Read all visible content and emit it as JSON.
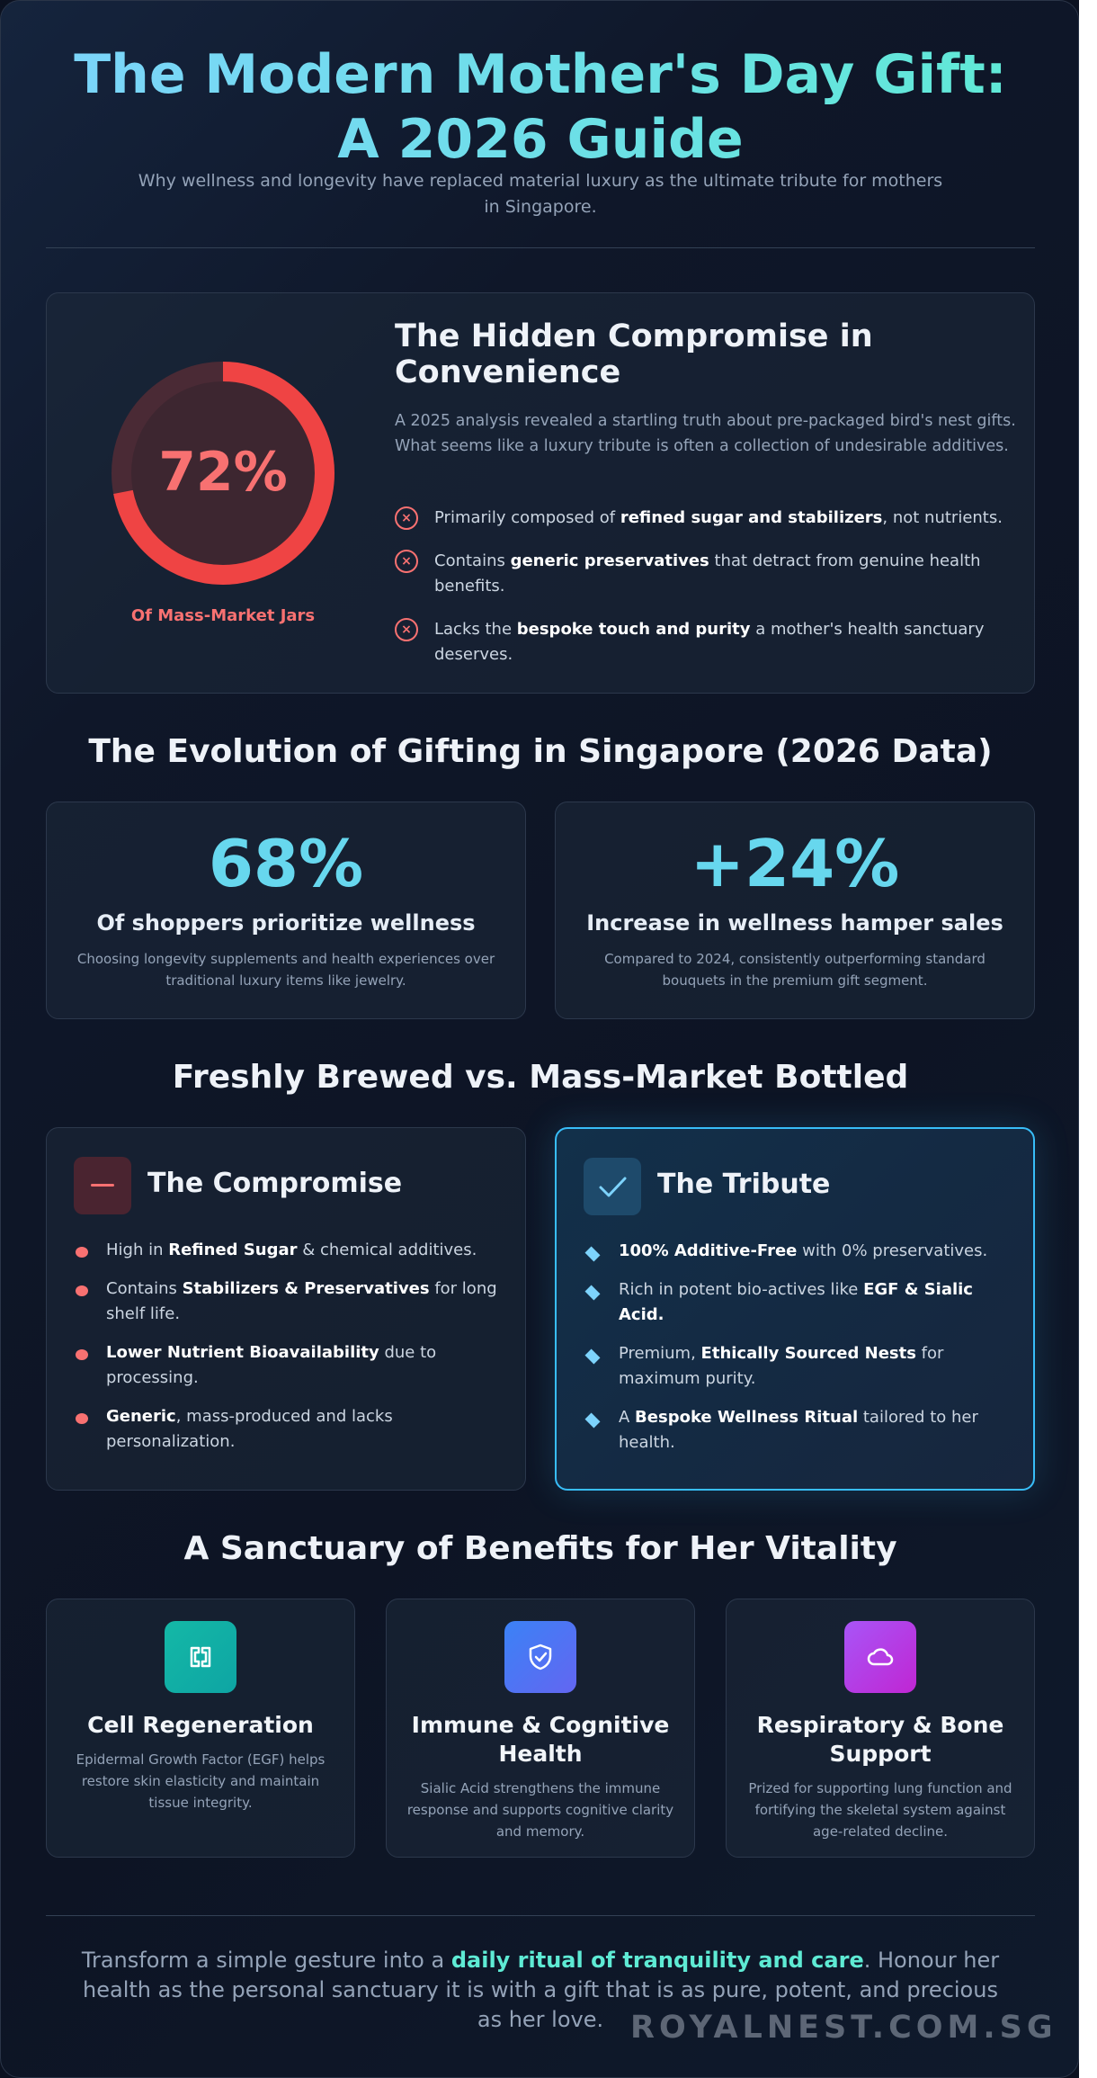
{
  "header": {
    "title_line1": "The Modern Mother's Day Gift:",
    "title_line2": "A 2026 Guide",
    "subtitle": "Why wellness and longevity have replaced material luxury as the ultimate tribute for mothers in Singapore."
  },
  "compromise": {
    "percent": "72%",
    "percent_value": 72,
    "caption": "Of Mass-Market Jars",
    "title": "The Hidden Compromise in Convenience",
    "text": "A 2025 analysis revealed a startling truth about pre-packaged bird's nest gifts. What seems like a luxury tribute is often a collection of undesirable additives.",
    "items": [
      {
        "pre": "Primarily composed of ",
        "bold": "refined sugar and stabilizers",
        "post": ", not nutrients."
      },
      {
        "pre": "Contains ",
        "bold": "generic preservatives",
        "post": " that detract from genuine health benefits."
      },
      {
        "pre": "Lacks the ",
        "bold": "bespoke touch and purity",
        "post": " a mother's health sanctuary deserves."
      }
    ],
    "colors": {
      "accent": "#ef4444",
      "track": "#4a2a35"
    }
  },
  "evolution": {
    "heading": "The Evolution of Gifting in Singapore (2026 Data)",
    "stats": [
      {
        "value": "68%",
        "label": "Of shoppers prioritize wellness",
        "desc": "Choosing longevity supplements and health experiences over traditional luxury items like jewelry."
      },
      {
        "value": "+24%",
        "label": "Increase in wellness hamper sales",
        "desc": "Compared to 2024, consistently outperforming standard bouquets in the premium gift segment."
      }
    ]
  },
  "comparison": {
    "heading": "Freshly Brewed vs. Mass-Market Bottled",
    "compromise": {
      "title": "The Compromise",
      "icon": "minus-icon",
      "items": [
        {
          "pre": "High in ",
          "bold": "Refined Sugar",
          "post": " & chemical additives."
        },
        {
          "pre": "Contains ",
          "bold": "Stabilizers & Preservatives",
          "post": " for long shelf life."
        },
        {
          "pre": "",
          "bold": "Lower Nutrient Bioavailability",
          "post": " due to processing."
        },
        {
          "pre": "",
          "bold": "Generic",
          "post": ", mass-produced and lacks personalization."
        }
      ]
    },
    "tribute": {
      "title": "The Tribute",
      "icon": "check-icon",
      "items": [
        {
          "pre": "",
          "bold": "100% Additive-Free",
          "post": " with 0% preservatives."
        },
        {
          "pre": "Rich in potent bio-actives like ",
          "bold": "EGF & Sialic Acid.",
          "post": ""
        },
        {
          "pre": "Premium, ",
          "bold": "Ethically Sourced Nests",
          "post": " for maximum purity."
        },
        {
          "pre": "A ",
          "bold": "Bespoke Wellness Ritual",
          "post": " tailored to her health."
        }
      ]
    }
  },
  "benefits": {
    "heading": "A Sanctuary of Benefits for Her Vitality",
    "items": [
      {
        "title": "Cell Regeneration",
        "desc": "Epidermal Growth Factor (EGF) helps restore skin elasticity and maintain tissue integrity.",
        "icon": "cell-regeneration-icon",
        "color": "#14b8a6"
      },
      {
        "title": "Immune & Cognitive Health",
        "desc": "Sialic Acid strengthens the immune response and supports cognitive clarity and memory.",
        "icon": "shield-check-icon",
        "color": "#3b82f6"
      },
      {
        "title": "Respiratory & Bone Support",
        "desc": "Prized for supporting lung function and fortifying the skeletal system against age-related decline.",
        "icon": "cloud-icon",
        "color": "#a855f7"
      }
    ]
  },
  "footer": {
    "pre": "Transform a simple gesture into a ",
    "highlight": "daily ritual of tranquility and care",
    "post": ". Honour her health as the personal sanctuary it is with a gift that is as pure, potent, and precious as her love.",
    "brand": "ROYALNEST.COM.SG"
  }
}
